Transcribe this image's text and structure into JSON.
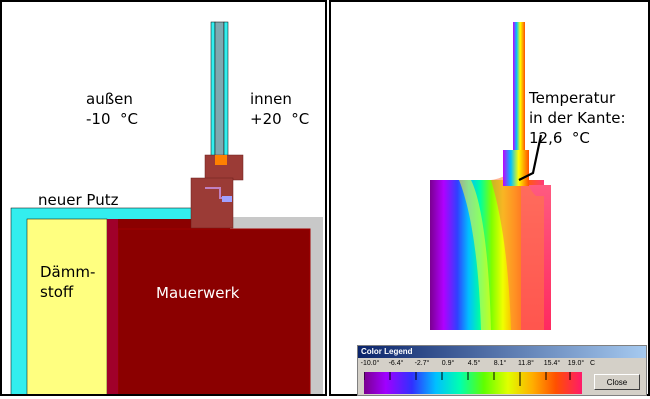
{
  "left_panel": {
    "label_outside": "außen\n-10  °C",
    "label_inside": "innen\n+20  °C",
    "label_plaster": "neuer Putz",
    "label_insulation": "Dämm-\nstoff",
    "label_masonry": "Mauerwerk"
  },
  "right_panel": {
    "label_edge_temp": "Temperatur\nin der Kante:\n12,6  °C"
  },
  "legend": {
    "title": "Color Legend",
    "ticks": [
      "-10.0°",
      "-6.4°",
      "-2.7°",
      "0.9°",
      "4.5°",
      "8.1°",
      "11.8°",
      "15.4°",
      "19.0°"
    ],
    "unit": "C",
    "close_label": "Close"
  },
  "colors": {
    "plaster": "#33eeee",
    "insulation": "#ffff80",
    "masonry": "#8b0000",
    "frame": "#9b3b36",
    "grey": "#c8c8c8"
  }
}
